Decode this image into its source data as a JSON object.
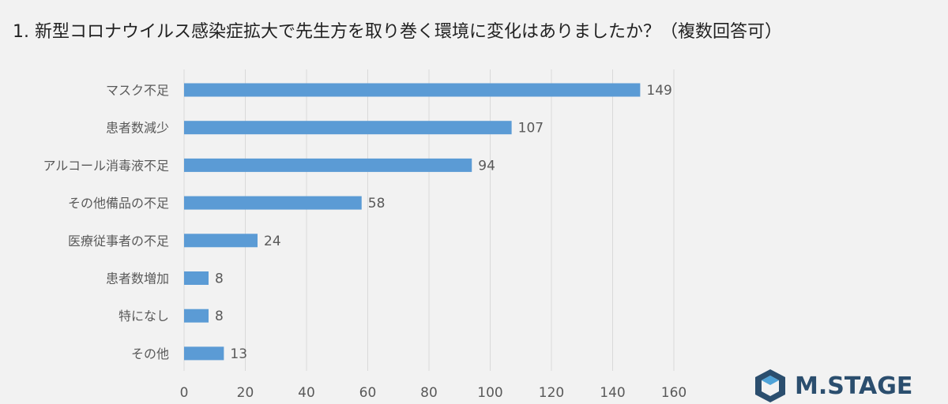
{
  "title": "1. 新型コロナウイルス感染症拡大で先生方を取り巻く環境に変化はありましたか？（複数回答可）",
  "logo": {
    "text": "M.STAGE"
  },
  "colors": {
    "bar": "#5b9bd5",
    "grid": "#d9d9d9",
    "text": "#595959",
    "background": "#f2f2f2"
  },
  "chart_data": {
    "type": "bar",
    "orientation": "horizontal",
    "categories": [
      "マスク不足",
      "患者数減少",
      "アルコール消毒液不足",
      "その他備品の不足",
      "医療従事者の不足",
      "患者数増加",
      "特になし",
      "その他"
    ],
    "values": [
      149,
      107,
      94,
      58,
      24,
      8,
      8,
      13
    ],
    "xlim": [
      0,
      160
    ],
    "xticks": [
      0,
      20,
      40,
      60,
      80,
      100,
      120,
      140,
      160
    ],
    "grid": "vertical",
    "data_labels": true
  }
}
